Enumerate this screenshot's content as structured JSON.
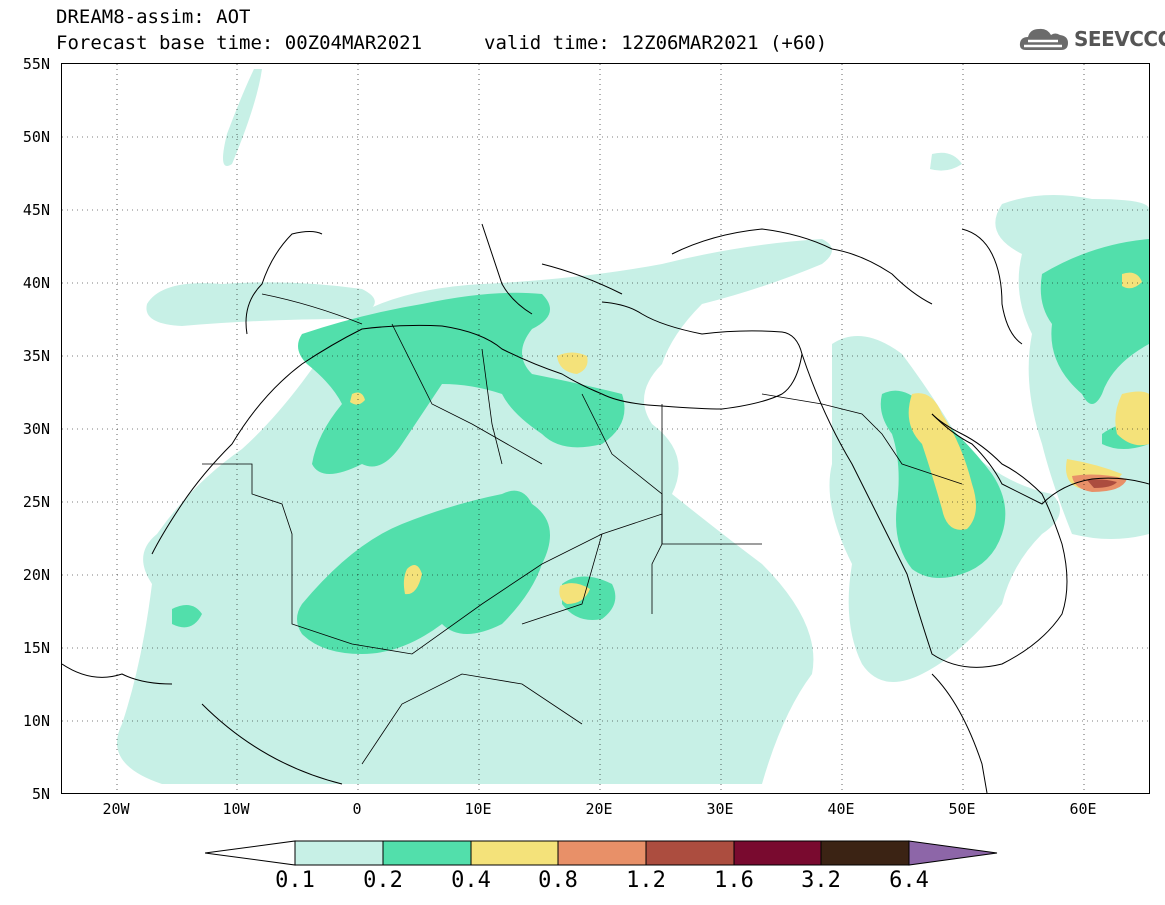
{
  "header": {
    "title_line1": "DREAM8-assim: AOT",
    "title_line2": "Forecast base time: 00Z04MAR2021",
    "valid_time": "valid time: 12Z06MAR2021 (+60)"
  },
  "logo": {
    "text": "SEEVCCC",
    "icon": "cloud-icon"
  },
  "map": {
    "lat_labels": [
      "55N",
      "50N",
      "45N",
      "40N",
      "35N",
      "30N",
      "25N",
      "20N",
      "15N",
      "10N",
      "5N"
    ],
    "lon_labels": [
      "20W",
      "10W",
      "0",
      "10E",
      "20E",
      "30E",
      "40E",
      "50E",
      "60E"
    ]
  },
  "colorbar": {
    "levels": [
      "0.1",
      "0.2",
      "0.4",
      "0.8",
      "1.2",
      "1.6",
      "3.2",
      "6.4"
    ],
    "colors": [
      "#c7f0e6",
      "#52dfab",
      "#f4e27a",
      "#e89068",
      "#ac4d3f",
      "#790a2f",
      "#3b2314",
      "#8d66a8"
    ]
  }
}
